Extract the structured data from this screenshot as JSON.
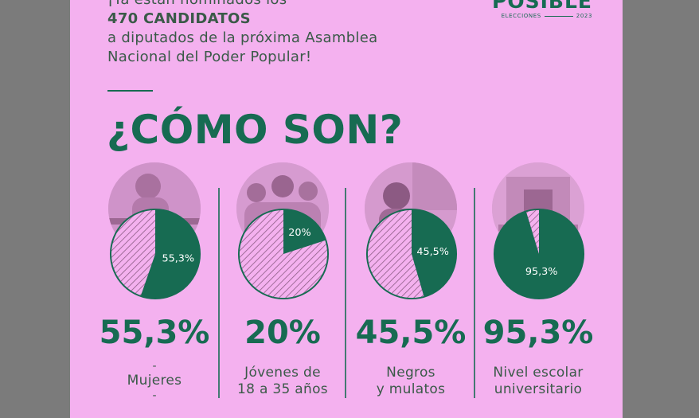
{
  "headline": {
    "line1": "¡Ya están nominados los",
    "line2": "470 CANDIDATOS",
    "line3": "a diputados de la próxima Asamblea",
    "line4": "Nacional del Poder Popular!"
  },
  "logo": {
    "word": "POSIBLE",
    "sub_left": "ELECCIONES",
    "sub_right": "2023"
  },
  "title": "¿CÓMO SON?",
  "colors": {
    "background": "#f4b1ef",
    "green": "#176b52",
    "hatch": "#8a5b83",
    "frame": "#7b7b7b"
  },
  "chart_data": [
    {
      "type": "pie",
      "values": [
        55.3,
        44.7
      ],
      "value_label": "55,3%",
      "big_value": "55,3%",
      "label_lines": [
        "Mujeres"
      ],
      "dash": "-",
      "image": "woman-worker-photo"
    },
    {
      "type": "pie",
      "values": [
        20,
        80
      ],
      "value_label": "20%",
      "big_value": "20%",
      "label_lines": [
        "Jóvenes de",
        "18 a 35 años"
      ],
      "image": "young-people-photo"
    },
    {
      "type": "pie",
      "values": [
        45.5,
        54.5
      ],
      "value_label": "45,5%",
      "big_value": "45,5%",
      "label_lines": [
        "Negros",
        "y mulatos"
      ],
      "image": "man-photo"
    },
    {
      "type": "pie",
      "values": [
        95.3,
        4.7
      ],
      "value_label": "95,3%",
      "big_value": "95,3%",
      "label_lines": [
        "Nivel escolar",
        "universitario"
      ],
      "image": "university-building-photo"
    }
  ]
}
